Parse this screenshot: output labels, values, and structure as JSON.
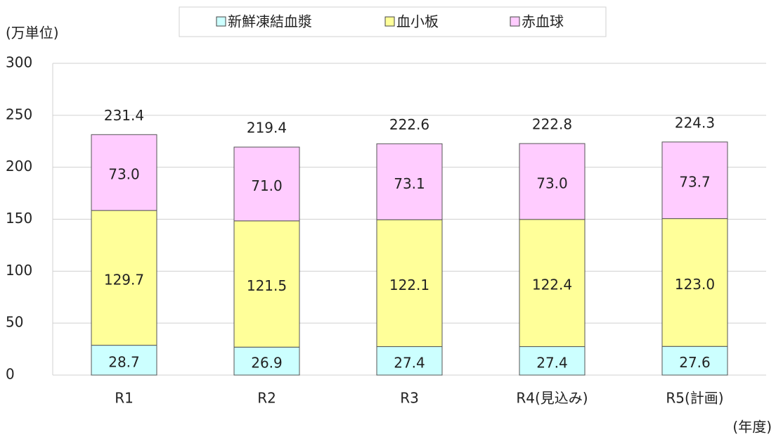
{
  "chart_data": {
    "type": "stacked_bar",
    "y_label": "(万単位)",
    "x_label": "(年度)",
    "categories": [
      "R1",
      "R2",
      "R3",
      "R4(見込み)",
      "R5(計画)"
    ],
    "series": [
      {
        "name": "新鮮凍結血漿",
        "color": "#ccffff",
        "values": [
          28.7,
          26.9,
          27.4,
          27.4,
          27.6
        ]
      },
      {
        "name": "血小板",
        "color": "#ffff99",
        "values": [
          129.7,
          121.5,
          122.1,
          122.4,
          123.0
        ],
        "value_labels": [
          "129.7",
          "121.5",
          "122.1",
          "122.4",
          "123.0"
        ]
      },
      {
        "name": "赤血球",
        "color": "#ffccff",
        "values": [
          73.0,
          71.0,
          73.1,
          73.0,
          73.7
        ],
        "value_labels": [
          "73.0",
          "71.0",
          "73.1",
          "73.0",
          "73.7"
        ]
      }
    ],
    "totals": [
      231.4,
      219.4,
      222.6,
      222.8,
      224.3
    ],
    "ylim": [
      0,
      300
    ],
    "yticks": [
      0,
      50,
      100,
      150,
      200,
      250,
      300
    ],
    "grid": true,
    "legend": "top"
  }
}
